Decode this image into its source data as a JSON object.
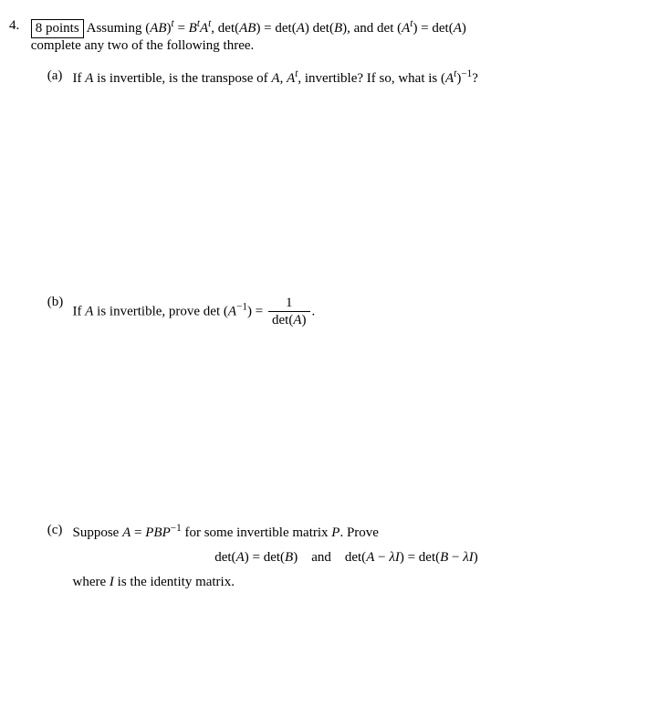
{
  "problem": {
    "number": "4.",
    "points_label": "8 points",
    "intro_before": "Assuming (",
    "intro_expr1": "AB",
    "intro_rparen_t_eq": ")",
    "intro_sup_t1": "t",
    "intro_eq1": " = ",
    "intro_B": "B",
    "intro_sup_t2": "t",
    "intro_A": "A",
    "intro_sup_t3": "t",
    "intro_det_ab": ", det(",
    "intro_AB2": "AB",
    "intro_rp2": ") = det(",
    "intro_A2": "A",
    "intro_rp3": ") det(",
    "intro_B2": "B",
    "intro_rp4": "), and det (",
    "intro_A3": "A",
    "intro_sup_t4": "t",
    "intro_rp5": ") = det(",
    "intro_A4": "A",
    "intro_rp6": ")",
    "intro_line2": "complete any two of the following three."
  },
  "parts": {
    "a": {
      "label": "(a)",
      "pre": "If ",
      "A": "A",
      "mid1": " is invertible, is the transpose of ",
      "A2": "A",
      "comma": ", ",
      "A3": "A",
      "sup_t": "t",
      "mid2": ", invertible? If so, what is (",
      "A4": "A",
      "sup_t2": "t",
      "mid3": ")",
      "sup_neg1": "−1",
      "q": "?"
    },
    "b": {
      "label": "(b)",
      "pre": "If ",
      "A": "A",
      "mid1": " is invertible, prove det (",
      "A2": "A",
      "sup_neg1": "−1",
      "mid2": ") = ",
      "frac_num": "1",
      "frac_den_pre": "det(",
      "frac_den_A": "A",
      "frac_den_post": ")",
      "period": "."
    },
    "c": {
      "label": "(c)",
      "pre": "Suppose ",
      "A": "A",
      "eq": " = ",
      "P": "P",
      "B": "B",
      "P2": "P",
      "sup_neg1": "−1",
      "mid1": " for some invertible matrix ",
      "P3": "P",
      "mid2": ". Prove",
      "eq_line_pre": "det(",
      "eq_A": "A",
      "eq_mid1": ") = det(",
      "eq_B": "B",
      "eq_mid2": ")",
      "and": "and",
      "eq2_pre": "det(",
      "eq2_A": "A",
      "eq2_minus": " − ",
      "eq2_lambda": "λ",
      "eq2_I": "I",
      "eq2_mid": ") = det(",
      "eq2_B": "B",
      "eq2_minus2": " − ",
      "eq2_lambda2": "λ",
      "eq2_I2": "I",
      "eq2_post": ")",
      "last_pre": "where ",
      "last_I": "I",
      "last_post": " is the identity matrix."
    }
  }
}
